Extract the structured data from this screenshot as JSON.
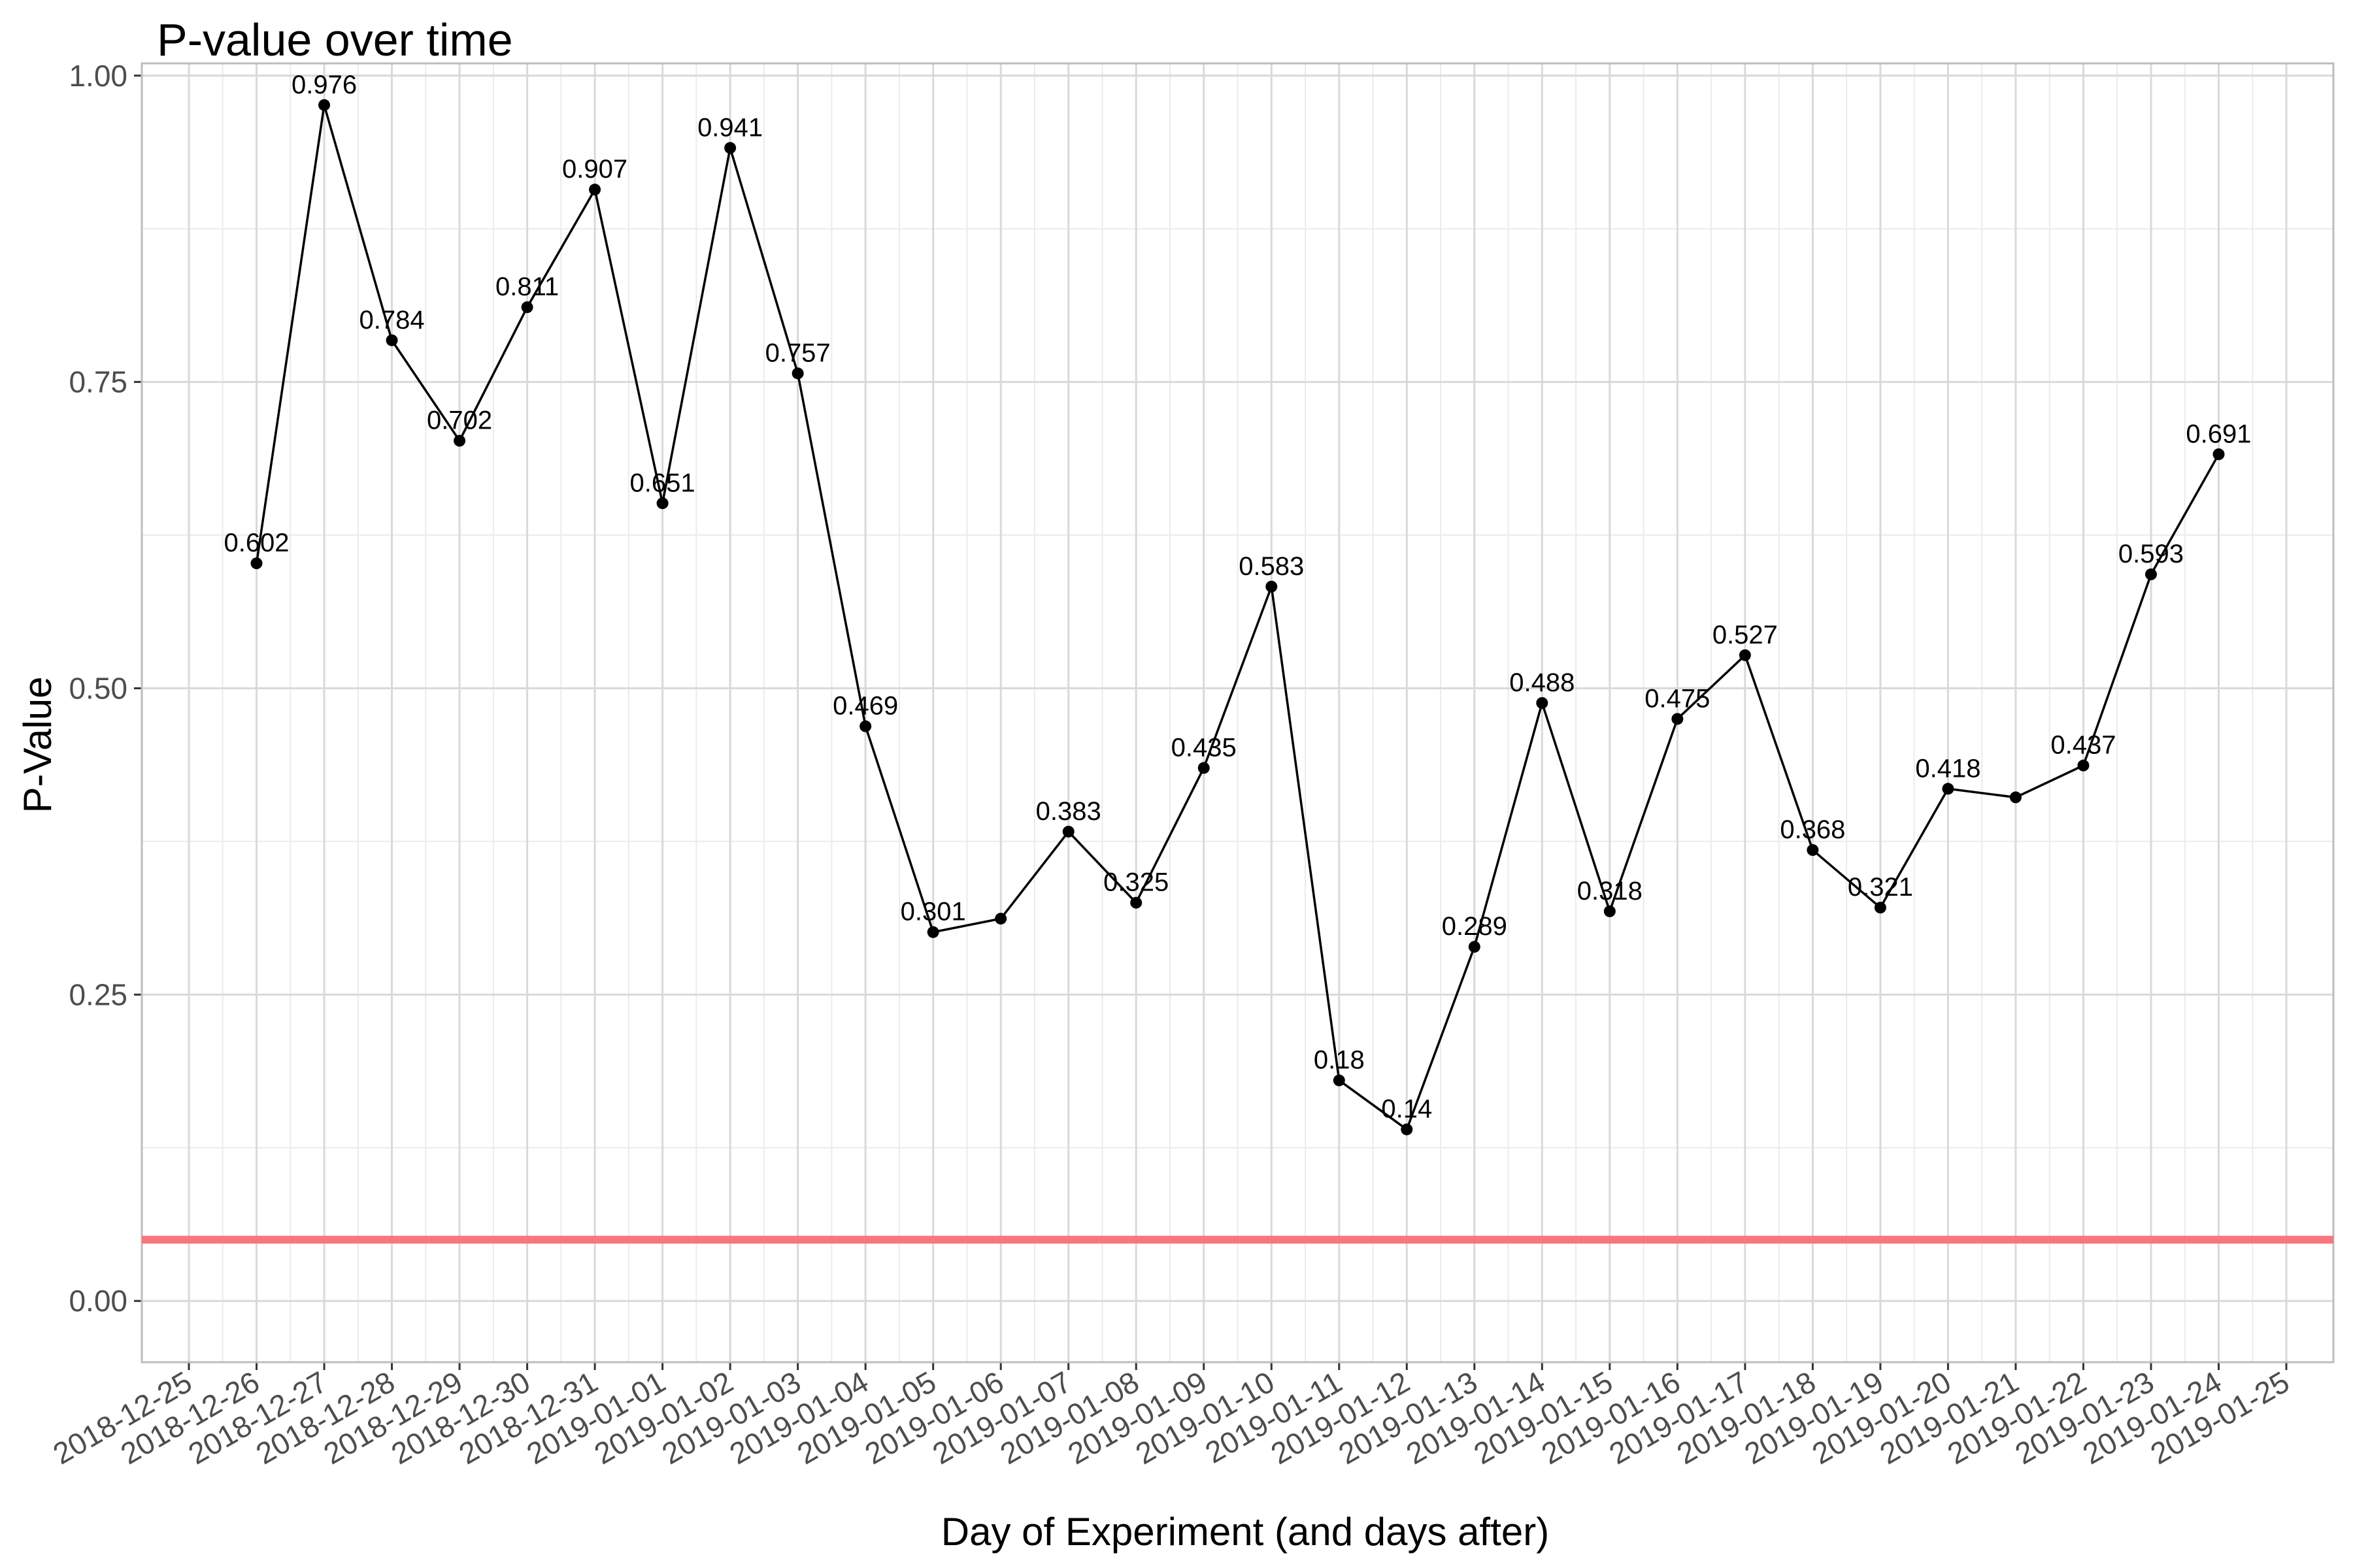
{
  "chart_data": {
    "type": "line",
    "title": "P-value over time",
    "xlabel": "Day of Experiment (and days after)",
    "ylabel": "P-Value",
    "ylim": [
      -0.05,
      1.01
    ],
    "yticks": [
      0.0,
      0.25,
      0.5,
      0.75,
      1.0
    ],
    "ytick_labels": [
      "0.00",
      "0.25",
      "0.50",
      "0.75",
      "1.00"
    ],
    "xticks": [
      "2018-12-25",
      "2018-12-26",
      "2018-12-27",
      "2018-12-28",
      "2018-12-29",
      "2018-12-30",
      "2018-12-31",
      "2019-01-01",
      "2019-01-02",
      "2019-01-03",
      "2019-01-04",
      "2019-01-05",
      "2019-01-06",
      "2019-01-07",
      "2019-01-08",
      "2019-01-09",
      "2019-01-10",
      "2019-01-11",
      "2019-01-12",
      "2019-01-13",
      "2019-01-14",
      "2019-01-15",
      "2019-01-16",
      "2019-01-17",
      "2019-01-18",
      "2019-01-19",
      "2019-01-20",
      "2019-01-21",
      "2019-01-22",
      "2019-01-23",
      "2019-01-24",
      "2019-01-25"
    ],
    "grid": true,
    "reference_line": {
      "y": 0.05,
      "color": "#f8767d"
    },
    "line_color": "#000000",
    "series": [
      {
        "points": [
          {
            "x": "2018-12-26",
            "y": 0.602,
            "label": "0.602"
          },
          {
            "x": "2018-12-27",
            "y": 0.976,
            "label": "0.976"
          },
          {
            "x": "2018-12-28",
            "y": 0.784,
            "label": "0.784"
          },
          {
            "x": "2018-12-29",
            "y": 0.702,
            "label": "0.702"
          },
          {
            "x": "2018-12-30",
            "y": 0.811,
            "label": "0.811"
          },
          {
            "x": "2018-12-31",
            "y": 0.907,
            "label": "0.907"
          },
          {
            "x": "2019-01-01",
            "y": 0.651,
            "label": "0.651"
          },
          {
            "x": "2019-01-02",
            "y": 0.941,
            "label": "0.941"
          },
          {
            "x": "2019-01-03",
            "y": 0.757,
            "label": "0.757"
          },
          {
            "x": "2019-01-04",
            "y": 0.469,
            "label": "0.469"
          },
          {
            "x": "2019-01-05",
            "y": 0.301,
            "label": "0.301"
          },
          {
            "x": "2019-01-06",
            "y": 0.312,
            "label": ""
          },
          {
            "x": "2019-01-07",
            "y": 0.383,
            "label": "0.383"
          },
          {
            "x": "2019-01-08",
            "y": 0.325,
            "label": "0.325"
          },
          {
            "x": "2019-01-09",
            "y": 0.435,
            "label": "0.435"
          },
          {
            "x": "2019-01-10",
            "y": 0.583,
            "label": "0.583"
          },
          {
            "x": "2019-01-11",
            "y": 0.18,
            "label": "0.18"
          },
          {
            "x": "2019-01-12",
            "y": 0.14,
            "label": "0.14"
          },
          {
            "x": "2019-01-13",
            "y": 0.289,
            "label": "0.289"
          },
          {
            "x": "2019-01-14",
            "y": 0.488,
            "label": "0.488"
          },
          {
            "x": "2019-01-15",
            "y": 0.318,
            "label": "0.318"
          },
          {
            "x": "2019-01-16",
            "y": 0.475,
            "label": "0.475"
          },
          {
            "x": "2019-01-17",
            "y": 0.527,
            "label": "0.527"
          },
          {
            "x": "2019-01-18",
            "y": 0.368,
            "label": "0.368"
          },
          {
            "x": "2019-01-19",
            "y": 0.321,
            "label": "0.321"
          },
          {
            "x": "2019-01-20",
            "y": 0.418,
            "label": "0.418"
          },
          {
            "x": "2019-01-21",
            "y": 0.411,
            "label": ""
          },
          {
            "x": "2019-01-22",
            "y": 0.437,
            "label": "0.437"
          },
          {
            "x": "2019-01-23",
            "y": 0.593,
            "label": "0.593"
          },
          {
            "x": "2019-01-24",
            "y": 0.691,
            "label": "0.691"
          }
        ]
      }
    ]
  }
}
